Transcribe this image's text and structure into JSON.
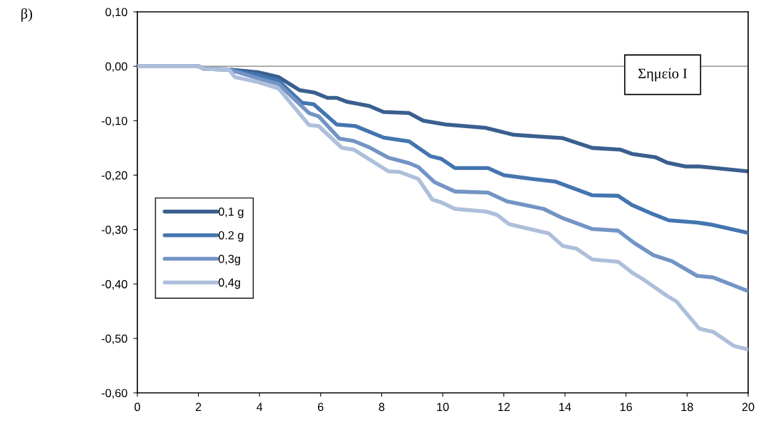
{
  "chart_data": {
    "type": "line",
    "annotations": [
      "β)",
      "Σημείο Ι"
    ],
    "xlim": [
      0,
      20
    ],
    "xticks": [
      0,
      2,
      4,
      6,
      8,
      10,
      12,
      14,
      16,
      18,
      20
    ],
    "ylim": [
      -0.6,
      0.1
    ],
    "yticks": [
      {
        "value": -0.6,
        "label": "-0,60"
      },
      {
        "value": -0.5,
        "label": "-0,50"
      },
      {
        "value": -0.4,
        "label": "-0,40"
      },
      {
        "value": -0.3,
        "label": "-0,30"
      },
      {
        "value": -0.2,
        "label": "-0,20"
      },
      {
        "value": -0.1,
        "label": "-0,10"
      },
      {
        "value": 0,
        "label": "0,00"
      },
      {
        "value": 0.1,
        "label": "0,10"
      }
    ],
    "ref_lines": [
      {
        "axis": "y",
        "value": 0,
        "color": "#a0a0a0"
      }
    ],
    "grid": false,
    "legend": "left",
    "marker": "none",
    "line_style": "solid",
    "series": [
      {
        "name": "0,1 g",
        "color": "#3a5f8f",
        "x": [
          0,
          2,
          2.2,
          3,
          3.95,
          4.63,
          5.32,
          5.78,
          6.23,
          6.53,
          6.85,
          7.6,
          8.06,
          8.9,
          9.36,
          10.1,
          11.4,
          12.33,
          13.93,
          14.9,
          15.8,
          16.2,
          16.96,
          17.35,
          17.95,
          18.4,
          20
        ],
        "values": [
          0,
          0,
          -0.005,
          -0.006,
          -0.011,
          -0.02,
          -0.044,
          -0.048,
          -0.058,
          -0.058,
          -0.065,
          -0.073,
          -0.084,
          -0.086,
          -0.1,
          -0.107,
          -0.113,
          -0.126,
          -0.132,
          -0.15,
          -0.153,
          -0.161,
          -0.167,
          -0.177,
          -0.184,
          -0.184,
          -0.193
        ]
      },
      {
        "name": "0.2 g",
        "color": "#4475b0",
        "x": [
          0,
          2,
          2.2,
          3,
          3.95,
          4.63,
          5.39,
          5.78,
          6.53,
          7.15,
          8.06,
          8.9,
          9.59,
          9.95,
          10.4,
          11.48,
          12.0,
          12.78,
          13.7,
          14.9,
          15.74,
          16.2,
          16.9,
          17.4,
          18.33,
          18.8,
          20
        ],
        "values": [
          0,
          0,
          -0.005,
          -0.006,
          -0.016,
          -0.027,
          -0.067,
          -0.07,
          -0.107,
          -0.11,
          -0.131,
          -0.138,
          -0.165,
          -0.17,
          -0.187,
          -0.187,
          -0.2,
          -0.206,
          -0.212,
          -0.237,
          -0.238,
          -0.255,
          -0.272,
          -0.283,
          -0.287,
          -0.291,
          -0.306
        ]
      },
      {
        "name": "0,3g",
        "color": "#7394c4",
        "x": [
          0,
          2,
          2.2,
          3,
          3.95,
          4.63,
          5.62,
          5.94,
          6.62,
          7.08,
          7.6,
          8.22,
          8.9,
          9.2,
          9.73,
          10.4,
          11.48,
          12.1,
          13.3,
          13.93,
          14.9,
          15.74,
          16.28,
          16.9,
          17.5,
          18.33,
          18.86,
          20
        ],
        "values": [
          0,
          0,
          -0.005,
          -0.006,
          -0.022,
          -0.033,
          -0.086,
          -0.092,
          -0.133,
          -0.137,
          -0.149,
          -0.168,
          -0.178,
          -0.185,
          -0.213,
          -0.23,
          -0.232,
          -0.248,
          -0.262,
          -0.279,
          -0.299,
          -0.302,
          -0.325,
          -0.347,
          -0.358,
          -0.385,
          -0.388,
          -0.413
        ]
      },
      {
        "name": "0,4g",
        "color": "#aebfdb",
        "x": [
          0,
          2,
          2.2,
          3,
          3.2,
          3.95,
          4.63,
          5.62,
          5.94,
          6.7,
          7.08,
          8.22,
          8.58,
          9.2,
          9.66,
          9.95,
          10.4,
          11.42,
          11.78,
          12.17,
          12.92,
          13.47,
          13.93,
          14.38,
          14.9,
          15.74,
          16.2,
          16.58,
          17.35,
          17.65,
          18.4,
          18.86,
          19.54,
          20
        ],
        "values": [
          0,
          0,
          -0.005,
          -0.006,
          -0.02,
          -0.029,
          -0.041,
          -0.108,
          -0.11,
          -0.15,
          -0.153,
          -0.193,
          -0.194,
          -0.207,
          -0.245,
          -0.25,
          -0.262,
          -0.267,
          -0.273,
          -0.29,
          -0.3,
          -0.307,
          -0.33,
          -0.335,
          -0.355,
          -0.359,
          -0.379,
          -0.392,
          -0.422,
          -0.432,
          -0.482,
          -0.488,
          -0.514,
          -0.52
        ]
      }
    ]
  }
}
